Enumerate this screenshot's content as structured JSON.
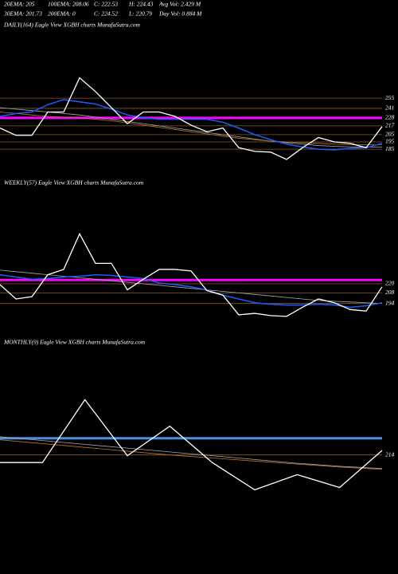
{
  "header": {
    "rows": [
      [
        "20EMA: 205",
        "100EMA: 208.06",
        "C: 222.53",
        "H: 224.43",
        "Avg Vol: 2.429 M"
      ],
      [
        "30EMA: 201.73",
        "200EMA: 0",
        "C: 224.52",
        "L: 220.79",
        "Day Vol: 0.884 M"
      ]
    ]
  },
  "chart_data": [
    {
      "type": "line",
      "title": "DAILY(164) Eagle  View  XGBH charts MunafaSutra.com",
      "ylim": [
        160,
        300
      ],
      "yticks": [
        255,
        241,
        228,
        217,
        205,
        195,
        185
      ],
      "grid": true,
      "grid_color": "#8b5a2b",
      "hlines": [
        {
          "value": 228,
          "color": "#ff00ff"
        }
      ],
      "series": [
        {
          "color": "#aaaaaa",
          "values": [
            242,
            240,
            238,
            236,
            234,
            232,
            229,
            226,
            223,
            220,
            217,
            214,
            211,
            208,
            205,
            202,
            199,
            196,
            194,
            192,
            190,
            189,
            188,
            188,
            188
          ]
        },
        {
          "color": "#b87333",
          "values": [
            236,
            234,
            232,
            230,
            229,
            228,
            226,
            224,
            221,
            218,
            215,
            212,
            209,
            206,
            203,
            200,
            198,
            196,
            195,
            194,
            193,
            192,
            191,
            191,
            191
          ]
        },
        {
          "color": "#1e5aff",
          "values": [
            230,
            234,
            236,
            246,
            253,
            250,
            247,
            240,
            232,
            228,
            226,
            226,
            226,
            226,
            222,
            214,
            205,
            198,
            192,
            188,
            185,
            184,
            186,
            187,
            193
          ]
        },
        {
          "color": "#ffffff",
          "values": [
            214,
            204,
            204,
            236,
            236,
            283,
            264,
            242,
            220,
            236,
            236,
            230,
            218,
            209,
            214,
            187,
            182,
            181,
            171,
            187,
            201,
            195,
            193,
            187,
            216
          ]
        }
      ]
    },
    {
      "type": "line",
      "title": "WEEKLY(57) Eagle  View  XGBH charts MunafaSutra.com",
      "ylim": [
        160,
        300
      ],
      "yticks": [
        220,
        208,
        194
      ],
      "grid": true,
      "grid_color": "#8b5a2b",
      "hlines": [
        {
          "value": 225,
          "color": "#ff00ff"
        }
      ],
      "series": [
        {
          "color": "#aaaaaa",
          "values": [
            238,
            236,
            234,
            232,
            230,
            228,
            226,
            224,
            222,
            220,
            218,
            216,
            214,
            212,
            210,
            208,
            206,
            204,
            202,
            200,
            198,
            197,
            196,
            195,
            194
          ]
        },
        {
          "color": "#1e5aff",
          "values": [
            232,
            229,
            226,
            227,
            229,
            230,
            232,
            231,
            229,
            227,
            221,
            219,
            216,
            212,
            205,
            200,
            195,
            193,
            192,
            192,
            193,
            192,
            189,
            191,
            195
          ]
        },
        {
          "color": "#ffffff",
          "values": [
            219,
            200,
            203,
            232,
            239,
            286,
            247,
            247,
            212,
            226,
            239,
            239,
            237,
            211,
            205,
            179,
            181,
            178,
            177,
            189,
            200,
            195,
            186,
            184,
            216
          ]
        }
      ]
    },
    {
      "type": "line",
      "title": "MONTHLY(9) Eagle  View  XGBH charts MunafaSutra.com",
      "ylim": [
        160,
        300
      ],
      "yticks": [
        214
      ],
      "grid": true,
      "grid_color": "#8b5a2b",
      "hlines": [
        {
          "value": 236,
          "color": "#4a90e2"
        }
      ],
      "series": [
        {
          "color": "#aaaaaa",
          "values": [
            238,
            233,
            228,
            223,
            218,
            213,
            208,
            203,
            199,
            196
          ]
        },
        {
          "color": "#b87333",
          "values": [
            234,
            229,
            224,
            219,
            214,
            210,
            206,
            202,
            198,
            195
          ]
        },
        {
          "color": "#ffffff",
          "values": [
            204,
            204,
            287,
            213,
            252,
            204,
            168,
            188,
            171,
            220
          ]
        }
      ]
    }
  ]
}
